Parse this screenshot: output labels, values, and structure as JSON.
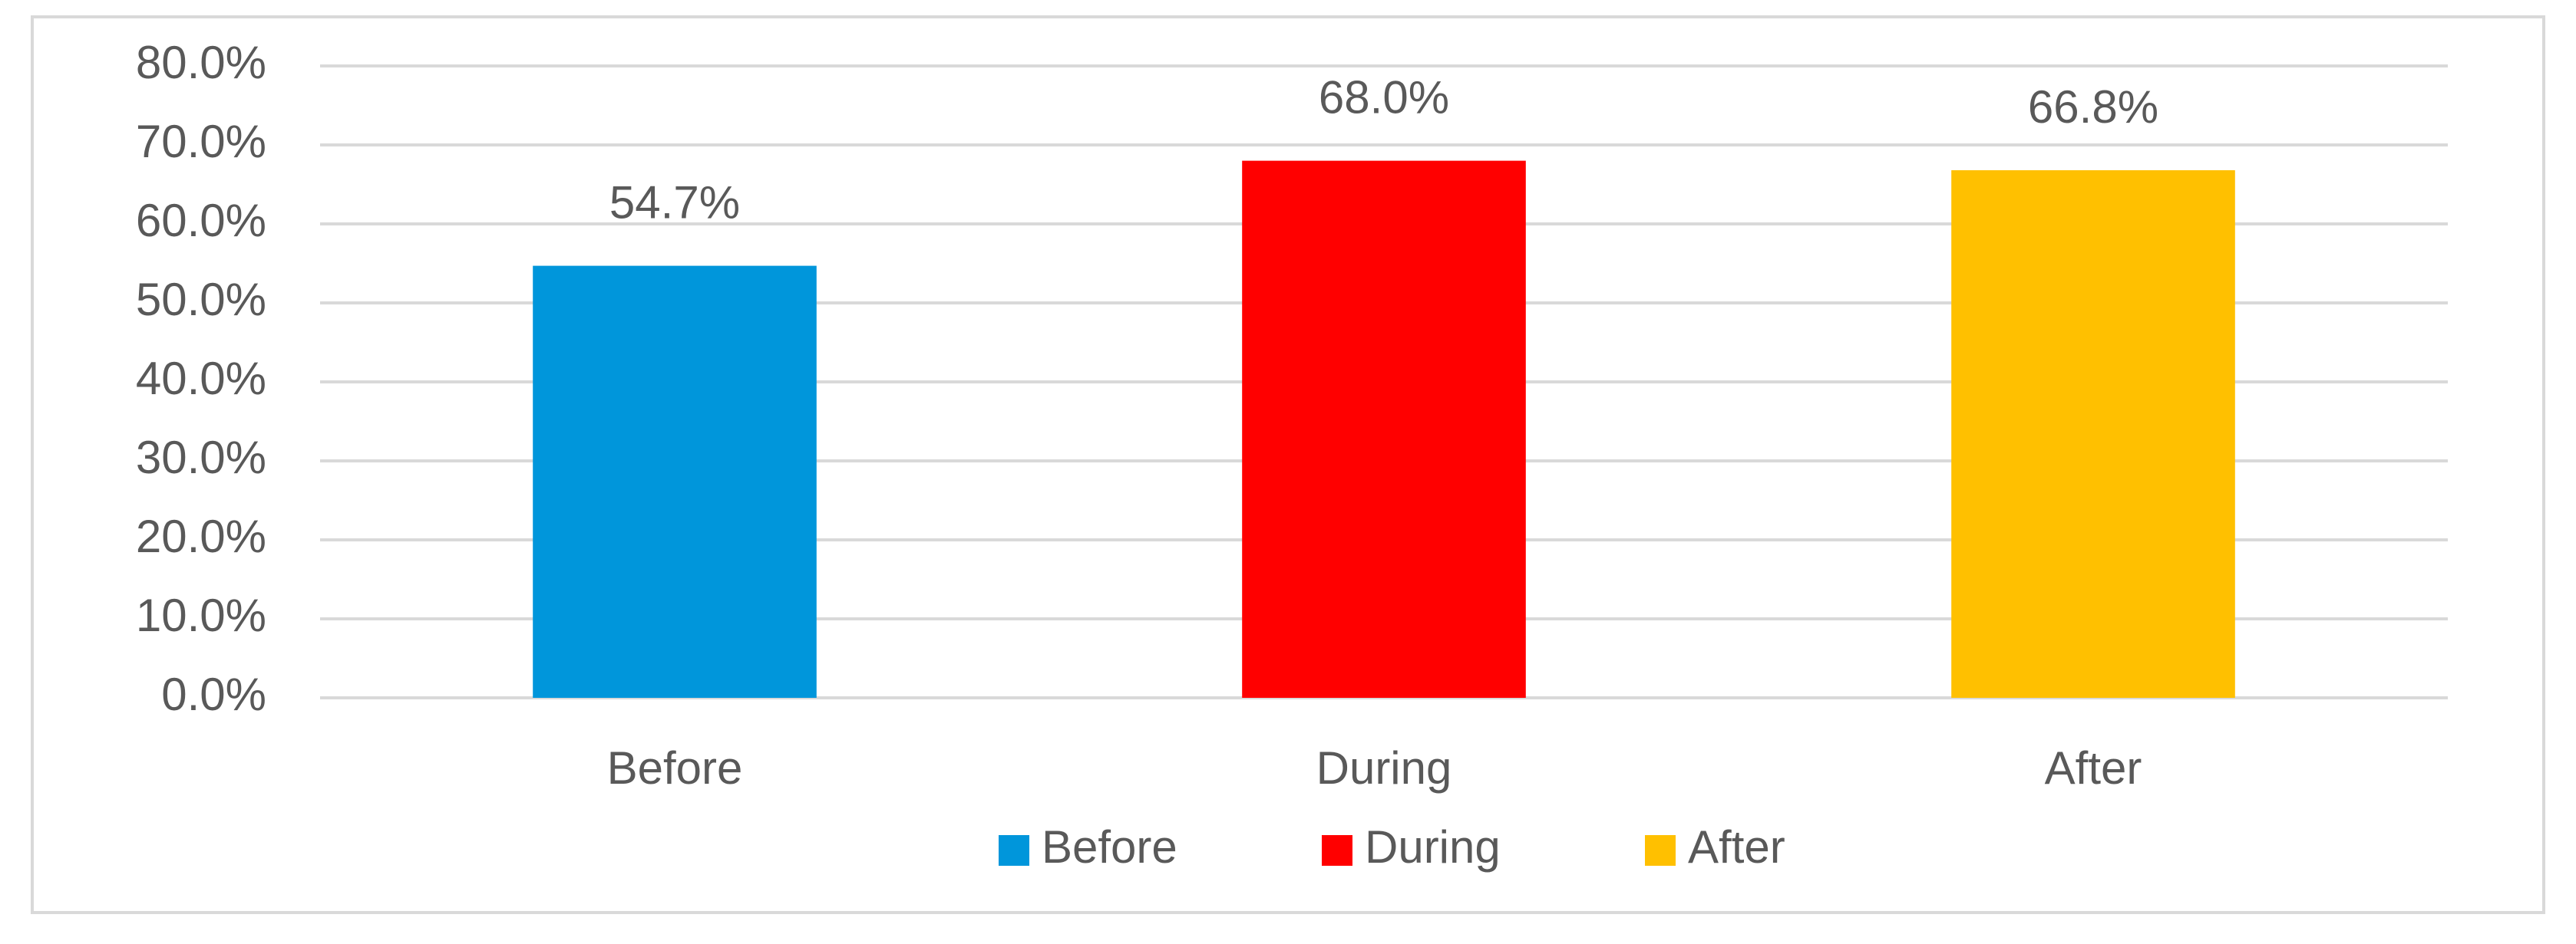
{
  "chart_data": {
    "type": "bar",
    "categories": [
      "Before",
      "During",
      "After"
    ],
    "values": [
      54.7,
      68.0,
      66.8
    ],
    "value_labels": [
      "54.7%",
      "68.0%",
      "66.8%"
    ],
    "colors": [
      "#0096db",
      "#ff0000",
      "#ffc000"
    ],
    "ylim": [
      0,
      80
    ],
    "yticks": [
      {
        "value": 0,
        "label": "0.0%"
      },
      {
        "value": 10,
        "label": "10.0%"
      },
      {
        "value": 20,
        "label": "20.0%"
      },
      {
        "value": 30,
        "label": "30.0%"
      },
      {
        "value": 40,
        "label": "40.0%"
      },
      {
        "value": 50,
        "label": "50.0%"
      },
      {
        "value": 60,
        "label": "60.0%"
      },
      {
        "value": 70,
        "label": "70.0%"
      },
      {
        "value": 80,
        "label": "80.0%"
      }
    ],
    "grid": true,
    "legend": "bottom"
  }
}
